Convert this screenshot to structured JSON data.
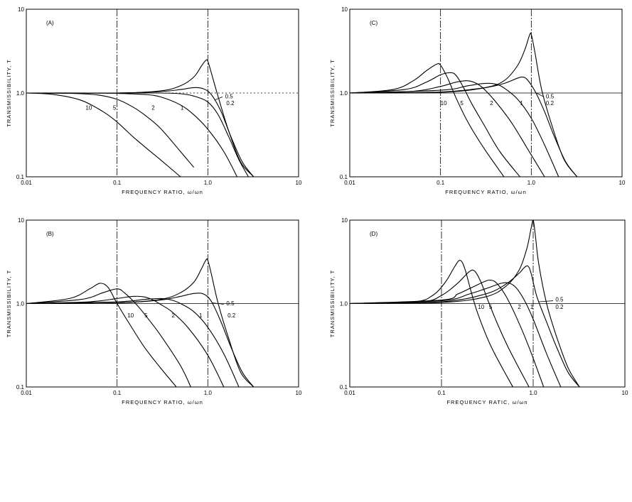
{
  "chart_data": [
    {
      "type": "line",
      "panel_label": "(A)",
      "xlabel": "FREQUENCY RATIO, ω/ωn",
      "ylabel": "TRANSMISSIBILITY, T",
      "x_scale": "log",
      "y_scale": "log",
      "xlim": [
        0.01,
        10
      ],
      "ylim": [
        0.1,
        10
      ],
      "x_ticks": [
        "0.01",
        "0.1",
        "1.0",
        "10"
      ],
      "y_ticks": [
        "0.1",
        "1.0",
        "10"
      ],
      "series": [
        {
          "name": "10",
          "x": [
            0.01,
            0.02,
            0.04,
            0.07,
            0.1,
            0.15,
            0.2,
            0.3,
            0.5
          ],
          "y": [
            1.0,
            0.96,
            0.82,
            0.6,
            0.45,
            0.3,
            0.23,
            0.16,
            0.1
          ]
        },
        {
          "name": "5",
          "x": [
            0.01,
            0.03,
            0.06,
            0.1,
            0.15,
            0.2,
            0.3,
            0.5,
            0.7
          ],
          "y": [
            1.0,
            0.99,
            0.95,
            0.84,
            0.68,
            0.55,
            0.38,
            0.2,
            0.13
          ]
        },
        {
          "name": "2",
          "x": [
            0.01,
            0.05,
            0.1,
            0.2,
            0.3,
            0.5,
            0.7,
            1.0,
            1.5,
            2.1
          ],
          "y": [
            1.0,
            1.0,
            0.99,
            0.96,
            0.9,
            0.72,
            0.55,
            0.37,
            0.2,
            0.1
          ]
        },
        {
          "name": "1",
          "x": [
            0.01,
            0.1,
            0.3,
            0.5,
            0.7,
            1.0,
            1.3,
            1.7,
            2.2,
            2.8
          ],
          "y": [
            1.0,
            1.0,
            1.0,
            0.98,
            0.92,
            0.78,
            0.55,
            0.3,
            0.16,
            0.1
          ]
        },
        {
          "name": "0.5",
          "x": [
            0.01,
            0.1,
            0.3,
            0.5,
            0.7,
            0.9,
            1.1,
            1.4,
            1.8,
            2.4,
            3.2
          ],
          "y": [
            1.0,
            1.0,
            1.04,
            1.1,
            1.16,
            1.12,
            0.95,
            0.6,
            0.3,
            0.15,
            0.1
          ]
        },
        {
          "name": "0.2",
          "x": [
            0.01,
            0.1,
            0.3,
            0.5,
            0.7,
            0.85,
            0.95,
            1.0,
            1.1,
            1.3,
            1.7,
            2.3,
            3.2
          ],
          "y": [
            1.0,
            1.0,
            1.06,
            1.22,
            1.55,
            2.1,
            2.45,
            2.4,
            1.7,
            0.9,
            0.35,
            0.15,
            0.1
          ]
        }
      ],
      "curve_labels": [
        "10",
        "5",
        "2",
        "1",
        "0.5",
        "0.2"
      ]
    },
    {
      "type": "line",
      "panel_label": "(B)",
      "xlabel": "FREQUENCY RATIO, ω/ωn",
      "ylabel": "TRANSMISSIBILITY, T",
      "x_scale": "log",
      "y_scale": "log",
      "xlim": [
        0.01,
        10
      ],
      "ylim": [
        0.1,
        10
      ],
      "x_ticks": [
        "0.01",
        "0.1",
        "1.0",
        "10"
      ],
      "y_ticks": [
        "0.1",
        "1.0",
        "10"
      ],
      "series": [
        {
          "name": "10",
          "x": [
            0.01,
            0.03,
            0.05,
            0.065,
            0.08,
            0.1,
            0.14,
            0.2,
            0.3,
            0.45
          ],
          "y": [
            1.0,
            1.15,
            1.5,
            1.75,
            1.55,
            1.0,
            0.55,
            0.3,
            0.17,
            0.1
          ]
        },
        {
          "name": "5",
          "x": [
            0.01,
            0.04,
            0.07,
            0.1,
            0.12,
            0.16,
            0.2,
            0.3,
            0.5,
            0.65
          ],
          "y": [
            1.0,
            1.12,
            1.35,
            1.5,
            1.35,
            1.0,
            0.75,
            0.42,
            0.18,
            0.1
          ]
        },
        {
          "name": "2",
          "x": [
            0.01,
            0.05,
            0.1,
            0.15,
            0.2,
            0.25,
            0.3,
            0.4,
            0.6,
            1.0,
            1.5
          ],
          "y": [
            1.0,
            1.05,
            1.15,
            1.22,
            1.2,
            1.1,
            0.98,
            0.8,
            0.52,
            0.24,
            0.1
          ]
        },
        {
          "name": "1",
          "x": [
            0.01,
            0.1,
            0.2,
            0.3,
            0.4,
            0.5,
            0.7,
            1.0,
            1.5,
            2.2
          ],
          "y": [
            1.0,
            1.05,
            1.12,
            1.15,
            1.1,
            1.0,
            0.8,
            0.52,
            0.25,
            0.1
          ]
        },
        {
          "name": "0.5",
          "x": [
            0.01,
            0.1,
            0.3,
            0.5,
            0.7,
            0.9,
            1.1,
            1.4,
            1.8,
            2.4,
            3.2
          ],
          "y": [
            1.0,
            1.02,
            1.1,
            1.22,
            1.32,
            1.3,
            1.05,
            0.6,
            0.3,
            0.15,
            0.1
          ]
        },
        {
          "name": "0.2",
          "x": [
            0.01,
            0.1,
            0.3,
            0.5,
            0.7,
            0.85,
            0.95,
            1.0,
            1.1,
            1.3,
            1.7,
            2.3,
            3.2
          ],
          "y": [
            1.0,
            1.02,
            1.12,
            1.35,
            1.8,
            2.6,
            3.3,
            3.3,
            2.2,
            1.0,
            0.38,
            0.15,
            0.1
          ]
        }
      ],
      "curve_labels": [
        "10",
        "5",
        "2",
        "1",
        "0.5",
        "0.2"
      ]
    },
    {
      "type": "line",
      "panel_label": "(C)",
      "xlabel": "FREQUENCY RATIO, ω/ωn",
      "ylabel": "TRANSMISSIBILITY, T",
      "x_scale": "log",
      "y_scale": "log",
      "xlim": [
        0.01,
        10
      ],
      "ylim": [
        0.1,
        10
      ],
      "x_ticks": [
        "0.01",
        "0.1",
        "1.0",
        "10"
      ],
      "y_ticks": [
        "0.1",
        "1.0",
        "10"
      ],
      "series": [
        {
          "name": "10",
          "x": [
            0.01,
            0.03,
            0.05,
            0.07,
            0.09,
            0.1,
            0.12,
            0.15,
            0.2,
            0.3,
            0.5
          ],
          "y": [
            1.0,
            1.1,
            1.4,
            1.85,
            2.2,
            2.15,
            1.5,
            0.85,
            0.45,
            0.22,
            0.1
          ]
        },
        {
          "name": "5",
          "x": [
            0.01,
            0.04,
            0.07,
            0.1,
            0.13,
            0.15,
            0.18,
            0.22,
            0.3,
            0.45,
            0.75
          ],
          "y": [
            1.0,
            1.1,
            1.35,
            1.65,
            1.75,
            1.6,
            1.15,
            0.75,
            0.42,
            0.2,
            0.1
          ]
        },
        {
          "name": "2",
          "x": [
            0.01,
            0.05,
            0.1,
            0.15,
            0.2,
            0.25,
            0.3,
            0.4,
            0.6,
            0.9,
            1.4
          ],
          "y": [
            1.0,
            1.05,
            1.2,
            1.35,
            1.4,
            1.3,
            1.12,
            0.8,
            0.45,
            0.22,
            0.1
          ]
        },
        {
          "name": "1",
          "x": [
            0.01,
            0.1,
            0.2,
            0.3,
            0.4,
            0.5,
            0.7,
            1.0,
            1.4,
            2.0
          ],
          "y": [
            1.0,
            1.08,
            1.22,
            1.3,
            1.28,
            1.15,
            0.85,
            0.5,
            0.24,
            0.1
          ]
        },
        {
          "name": "0.5",
          "x": [
            0.01,
            0.1,
            0.3,
            0.5,
            0.7,
            0.8,
            0.9,
            1.1,
            1.4,
            1.8,
            2.4,
            3.2
          ],
          "y": [
            1.0,
            1.03,
            1.15,
            1.3,
            1.5,
            1.55,
            1.45,
            1.05,
            0.6,
            0.3,
            0.15,
            0.1
          ]
        },
        {
          "name": "0.2",
          "x": [
            0.01,
            0.1,
            0.3,
            0.5,
            0.7,
            0.85,
            0.95,
            1.0,
            1.1,
            1.3,
            1.7,
            2.3,
            3.2
          ],
          "y": [
            1.0,
            1.02,
            1.15,
            1.4,
            2.1,
            3.3,
            4.8,
            5.0,
            3.0,
            1.1,
            0.4,
            0.16,
            0.1
          ]
        }
      ],
      "curve_labels": [
        "10",
        "5",
        "2",
        "1",
        "0.5",
        "0.2"
      ]
    },
    {
      "type": "line",
      "panel_label": "(D)",
      "xlabel": "FREQUENCY RATIC, ω/ωn",
      "ylabel": "TRANSMISSIBILITY, T",
      "x_scale": "log",
      "y_scale": "log",
      "xlim": [
        0.01,
        10
      ],
      "ylim": [
        0.1,
        10
      ],
      "x_ticks": [
        "0.01",
        "0.1",
        "1.0",
        "10"
      ],
      "y_ticks": [
        "0.1",
        "1.0",
        "10"
      ],
      "series": [
        {
          "name": "10",
          "x": [
            0.01,
            0.05,
            0.08,
            0.11,
            0.14,
            0.16,
            0.18,
            0.21,
            0.25,
            0.35,
            0.6
          ],
          "y": [
            1.0,
            1.05,
            1.25,
            1.8,
            2.8,
            3.3,
            2.6,
            1.4,
            0.75,
            0.3,
            0.1
          ]
        },
        {
          "name": "5",
          "x": [
            0.01,
            0.06,
            0.1,
            0.15,
            0.2,
            0.23,
            0.27,
            0.32,
            0.4,
            0.55,
            0.9
          ],
          "y": [
            1.0,
            1.05,
            1.25,
            1.75,
            2.4,
            2.45,
            1.8,
            1.1,
            0.6,
            0.28,
            0.1
          ]
        },
        {
          "name": "2",
          "x": [
            0.01,
            0.1,
            0.15,
            0.2,
            0.3,
            0.35,
            0.4,
            0.5,
            0.65,
            0.9,
            1.3
          ],
          "y": [
            1.0,
            1.1,
            1.3,
            1.5,
            1.85,
            1.9,
            1.75,
            1.25,
            0.7,
            0.3,
            0.1
          ]
        },
        {
          "name": "1",
          "x": [
            0.01,
            0.1,
            0.2,
            0.3,
            0.45,
            0.55,
            0.65,
            0.8,
            1.0,
            1.4,
            2.0
          ],
          "y": [
            1.0,
            1.08,
            1.3,
            1.5,
            1.75,
            1.75,
            1.55,
            1.1,
            0.65,
            0.25,
            0.1
          ]
        },
        {
          "name": "0.5",
          "x": [
            0.01,
            0.1,
            0.3,
            0.5,
            0.7,
            0.8,
            0.88,
            0.95,
            1.1,
            1.4,
            1.8,
            2.4,
            3.2
          ],
          "y": [
            1.0,
            1.05,
            1.3,
            1.7,
            2.3,
            2.7,
            2.8,
            2.3,
            1.2,
            0.6,
            0.3,
            0.15,
            0.1
          ]
        },
        {
          "name": "0.2",
          "x": [
            0.01,
            0.1,
            0.3,
            0.5,
            0.7,
            0.85,
            0.95,
            1.0,
            1.05,
            1.15,
            1.4,
            1.8,
            2.4,
            3.2
          ],
          "y": [
            1.0,
            1.03,
            1.2,
            1.6,
            2.5,
            4.5,
            8.0,
            10.0,
            7.0,
            3.0,
            1.0,
            0.4,
            0.17,
            0.1
          ]
        }
      ],
      "curve_labels": [
        "10",
        "5",
        "2",
        "1",
        "0.5",
        "0.2"
      ]
    }
  ]
}
